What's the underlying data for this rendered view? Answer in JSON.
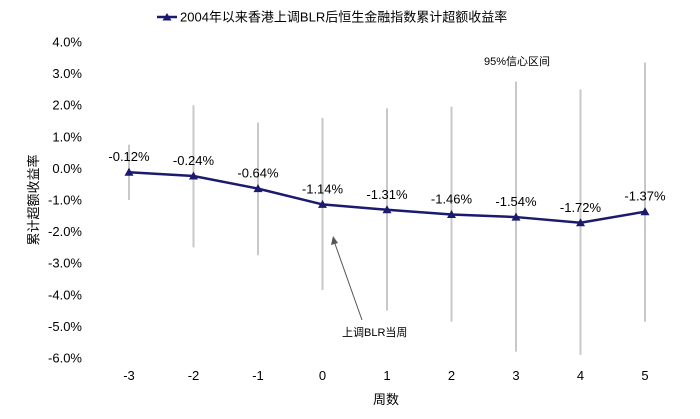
{
  "chart_data": {
    "type": "line",
    "title": "2004年以来香港上调BLR后恒生金融指数累计超额收益率",
    "legend_position": "top",
    "xlabel": "周数",
    "ylabel": "累计超额收益率",
    "x": [
      -3,
      -2,
      -1,
      0,
      1,
      2,
      3,
      4,
      5
    ],
    "x_tick_labels": [
      "-3",
      "-2",
      "-1",
      "0",
      "1",
      "2",
      "3",
      "4",
      "5"
    ],
    "ylim": [
      -6.0,
      4.0
    ],
    "y_ticks": [
      4.0,
      3.0,
      2.0,
      1.0,
      0.0,
      -1.0,
      -2.0,
      -3.0,
      -4.0,
      -5.0,
      -6.0
    ],
    "y_tick_labels": [
      "4.0%",
      "3.0%",
      "2.0%",
      "1.0%",
      "0.0%",
      "-1.0%",
      "-2.0%",
      "-3.0%",
      "-4.0%",
      "-5.0%",
      "-6.0%"
    ],
    "grid": false,
    "series": [
      {
        "name": "2004年以来香港上调BLR后恒生金融指数累计超额收益率",
        "values": [
          -0.12,
          -0.24,
          -0.64,
          -1.14,
          -1.31,
          -1.46,
          -1.54,
          -1.72,
          -1.37
        ],
        "data_labels": [
          "-0.12%",
          "-0.24%",
          "-0.64%",
          "-1.14%",
          "-1.31%",
          "-1.46%",
          "-1.54%",
          "-1.72%",
          "-1.37%"
        ],
        "error_low": [
          -1.0,
          -2.5,
          -2.75,
          -3.85,
          -4.5,
          -4.85,
          -5.8,
          -5.9,
          -4.85
        ],
        "error_high": [
          0.75,
          2.0,
          1.45,
          1.6,
          1.9,
          1.95,
          2.75,
          2.5,
          3.35
        ],
        "color": "#1a1a6e",
        "marker": "triangle"
      }
    ],
    "error_bar_color": "#c8c8c8",
    "annotations": [
      {
        "text": "95%信心区间",
        "target": "error-bars"
      },
      {
        "text": "上调BLR当周",
        "target_x": 0
      }
    ]
  }
}
